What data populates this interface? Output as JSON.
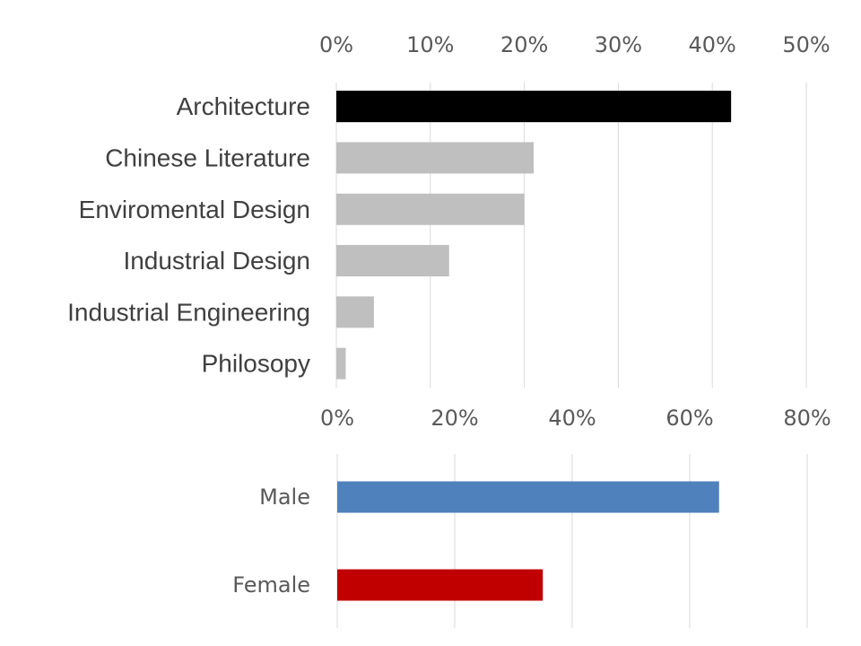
{
  "chart_data": [
    {
      "type": "bar",
      "orientation": "horizontal",
      "categories": [
        "Architecture",
        "Chinese Literature",
        "Enviromental Design",
        "Industrial Design",
        "Industrial Engineering",
        "Philosopy"
      ],
      "values": [
        42,
        21,
        20,
        12,
        4,
        1
      ],
      "colors": [
        "#000000",
        "#bfbfbf",
        "#bfbfbf",
        "#bfbfbf",
        "#bfbfbf",
        "#bfbfbf"
      ],
      "xlim": [
        0,
        50
      ],
      "ticks": [
        "0%",
        "10%",
        "20%",
        "30%",
        "40%",
        "50%"
      ],
      "axis_position": "top",
      "grid": true
    },
    {
      "type": "bar",
      "orientation": "horizontal",
      "categories": [
        "Male",
        "Female"
      ],
      "values": [
        65,
        35
      ],
      "colors": [
        "#4f81bd",
        "#c00000"
      ],
      "xlim": [
        0,
        80
      ],
      "ticks": [
        "0%",
        "20%",
        "40%",
        "60%",
        "80%"
      ],
      "axis_position": "top",
      "grid": true
    }
  ]
}
